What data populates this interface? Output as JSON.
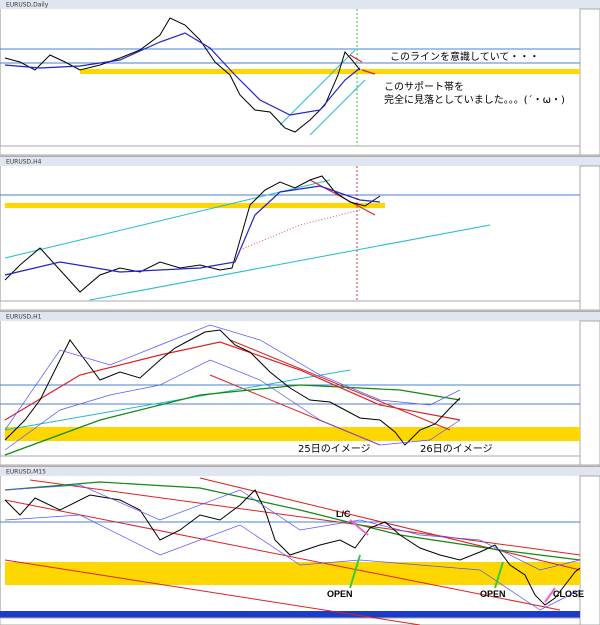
{
  "panels": [
    {
      "title": "EURUSD,Daily"
    },
    {
      "title": "EURUSD,H4"
    },
    {
      "title": "EURUSD,H1"
    },
    {
      "title": "EURUSD,M15"
    }
  ],
  "annotations": {
    "line_note": "このラインを意識していて・・・",
    "support_note_1": "このサポート帯を",
    "support_note_2": "完全に見落としていました。。。(´・ω・)",
    "day25": "25日のイメージ",
    "day26": "26日のイメージ",
    "lc": "L/C",
    "open1": "OPEN",
    "open2": "OPEN",
    "close": "CLOSE"
  }
}
